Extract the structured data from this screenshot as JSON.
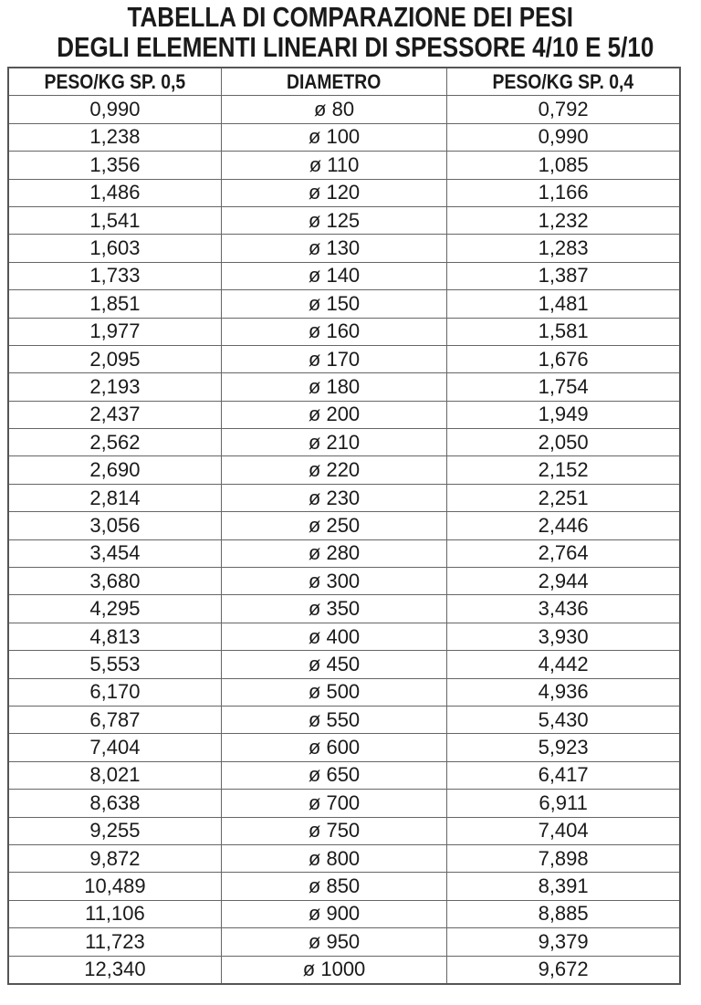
{
  "title": {
    "line1": "TABELLA DI COMPARAZIONE DEI PESI",
    "line2": "DEGLI ELEMENTI LINEARI DI SPESSORE 4/10 E 5/10"
  },
  "table": {
    "headers": [
      "PESO/KG SP. 0,5",
      "DIAMETRO",
      "PESO/KG SP. 0,4"
    ],
    "rows": [
      [
        "0,990",
        "ø 80",
        "0,792"
      ],
      [
        "1,238",
        "ø 100",
        "0,990"
      ],
      [
        "1,356",
        "ø 110",
        "1,085"
      ],
      [
        "1,486",
        "ø 120",
        "1,166"
      ],
      [
        "1,541",
        "ø 125",
        "1,232"
      ],
      [
        "1,603",
        "ø 130",
        "1,283"
      ],
      [
        "1,733",
        "ø 140",
        "1,387"
      ],
      [
        "1,851",
        "ø 150",
        "1,481"
      ],
      [
        "1,977",
        "ø 160",
        "1,581"
      ],
      [
        "2,095",
        "ø 170",
        "1,676"
      ],
      [
        "2,193",
        "ø 180",
        "1,754"
      ],
      [
        "2,437",
        "ø 200",
        "1,949"
      ],
      [
        "2,562",
        "ø 210",
        "2,050"
      ],
      [
        "2,690",
        "ø 220",
        "2,152"
      ],
      [
        "2,814",
        "ø 230",
        "2,251"
      ],
      [
        "3,056",
        "ø 250",
        "2,446"
      ],
      [
        "3,454",
        "ø 280",
        "2,764"
      ],
      [
        "3,680",
        "ø 300",
        "2,944"
      ],
      [
        "4,295",
        "ø 350",
        "3,436"
      ],
      [
        "4,813",
        "ø 400",
        "3,930"
      ],
      [
        "5,553",
        "ø 450",
        "4,442"
      ],
      [
        "6,170",
        "ø 500",
        "4,936"
      ],
      [
        "6,787",
        "ø 550",
        "5,430"
      ],
      [
        "7,404",
        "ø 600",
        "5,923"
      ],
      [
        "8,021",
        "ø 650",
        "6,417"
      ],
      [
        "8,638",
        "ø 700",
        "6,911"
      ],
      [
        "9,255",
        "ø 750",
        "7,404"
      ],
      [
        "9,872",
        "ø 800",
        "7,898"
      ],
      [
        "10,489",
        "ø 850",
        "8,391"
      ],
      [
        "11,106",
        "ø 900",
        "8,885"
      ],
      [
        "11,723",
        "ø 950",
        "9,379"
      ],
      [
        "12,340",
        "ø 1000",
        "9,672"
      ]
    ]
  }
}
